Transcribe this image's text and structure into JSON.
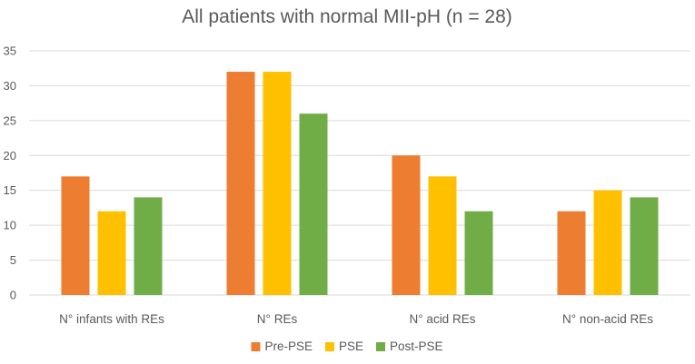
{
  "chart_data": {
    "type": "bar",
    "title": "All patients with normal MII-pH (n = 28)",
    "categories": [
      "N° infants with REs",
      "N° REs",
      "N° acid REs",
      "N° non-acid REs"
    ],
    "series": [
      {
        "name": "Pre-PSE",
        "color": "#ED7D31",
        "values": [
          17,
          32,
          20,
          12
        ]
      },
      {
        "name": "PSE",
        "color": "#FFC000",
        "values": [
          12,
          32,
          17,
          15
        ]
      },
      {
        "name": "Post-PSE",
        "color": "#70AD47",
        "values": [
          14,
          26,
          12,
          14
        ]
      }
    ],
    "yticks": [
      0,
      5,
      10,
      15,
      20,
      25,
      30,
      35
    ],
    "ylim": [
      0,
      35
    ],
    "xlabel": "",
    "ylabel": "",
    "grid": true,
    "legend_position": "bottom"
  }
}
